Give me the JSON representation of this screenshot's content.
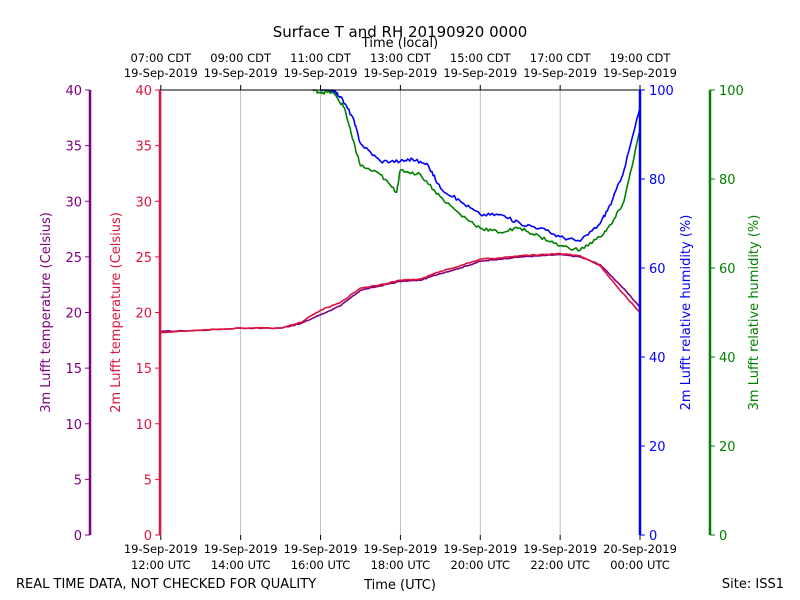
{
  "chart_data": {
    "type": "line",
    "title": "Surface T and RH 20190920 0000",
    "top_xlabel": "Time (local)",
    "xlabel": "Time (UTC)",
    "x_range_hours_utc": [
      11.98,
      24.0
    ],
    "grid": true,
    "bottom_ticks": [
      {
        "hour": 12,
        "line1": "19-Sep-2019",
        "line2": "12:00 UTC"
      },
      {
        "hour": 14,
        "line1": "19-Sep-2019",
        "line2": "14:00 UTC"
      },
      {
        "hour": 16,
        "line1": "19-Sep-2019",
        "line2": "16:00 UTC"
      },
      {
        "hour": 18,
        "line1": "19-Sep-2019",
        "line2": "18:00 UTC"
      },
      {
        "hour": 20,
        "line1": "19-Sep-2019",
        "line2": "20:00 UTC"
      },
      {
        "hour": 22,
        "line1": "19-Sep-2019",
        "line2": "22:00 UTC"
      },
      {
        "hour": 24,
        "line1": "20-Sep-2019",
        "line2": "00:00 UTC"
      }
    ],
    "top_ticks": [
      {
        "hour": 12,
        "line1": "07:00 CDT",
        "line2": "19-Sep-2019"
      },
      {
        "hour": 14,
        "line1": "09:00 CDT",
        "line2": "19-Sep-2019"
      },
      {
        "hour": 16,
        "line1": "11:00 CDT",
        "line2": "19-Sep-2019"
      },
      {
        "hour": 18,
        "line1": "13:00 CDT",
        "line2": "19-Sep-2019"
      },
      {
        "hour": 20,
        "line1": "15:00 CDT",
        "line2": "19-Sep-2019"
      },
      {
        "hour": 22,
        "line1": "17:00 CDT",
        "line2": "19-Sep-2019"
      },
      {
        "hour": 24,
        "line1": "19:00 CDT",
        "line2": "19-Sep-2019"
      }
    ],
    "axes": [
      {
        "id": "t3m",
        "label": "3m Lufft temperature (Celsius)",
        "color": "#800080",
        "ylim": [
          0,
          40
        ],
        "ticks": [
          0,
          5,
          10,
          15,
          20,
          25,
          30,
          35,
          40
        ]
      },
      {
        "id": "t2m",
        "label": "2m Lufft temperature (Celsius)",
        "color": "#dc143c",
        "ylim": [
          0,
          40
        ],
        "ticks": [
          0,
          5,
          10,
          15,
          20,
          25,
          30,
          35,
          40
        ]
      },
      {
        "id": "rh2m",
        "label": "2m Lufft relative humidity (%)",
        "color": "#0000ff",
        "ylim": [
          0,
          100
        ],
        "ticks": [
          0,
          20,
          40,
          60,
          80,
          100
        ]
      },
      {
        "id": "rh3m",
        "label": "3m Lufft relative humidity (%)",
        "color": "#008000",
        "ylim": [
          0,
          100
        ],
        "ticks": [
          0,
          20,
          40,
          60,
          80,
          100
        ]
      }
    ],
    "series": [
      {
        "name": "3m Lufft temperature",
        "axis": "t3m",
        "color": "#800080",
        "x": [
          12.0,
          13.0,
          14.0,
          15.0,
          15.5,
          16.0,
          16.5,
          17.0,
          17.5,
          18.0,
          18.5,
          19.0,
          19.5,
          20.0,
          20.5,
          21.0,
          21.5,
          22.0,
          22.5,
          23.0,
          23.5,
          24.0
        ],
        "y": [
          18.3,
          18.4,
          18.6,
          18.6,
          19.0,
          19.8,
          20.6,
          22.0,
          22.4,
          22.8,
          22.9,
          23.5,
          24.0,
          24.6,
          24.8,
          25.0,
          25.1,
          25.2,
          25.0,
          24.3,
          22.5,
          20.5
        ]
      },
      {
        "name": "2m Lufft temperature",
        "axis": "t2m",
        "color": "#dc143c",
        "x": [
          12.0,
          13.0,
          14.0,
          15.0,
          15.5,
          16.0,
          16.5,
          17.0,
          17.5,
          18.0,
          18.5,
          19.0,
          19.5,
          20.0,
          20.5,
          21.0,
          21.5,
          22.0,
          22.5,
          23.0,
          23.5,
          24.0
        ],
        "y": [
          18.2,
          18.4,
          18.6,
          18.6,
          19.1,
          20.2,
          20.9,
          22.2,
          22.5,
          22.9,
          23.0,
          23.7,
          24.2,
          24.8,
          24.9,
          25.1,
          25.2,
          25.3,
          25.1,
          24.2,
          22.0,
          20.0
        ]
      },
      {
        "name": "2m Lufft relative humidity",
        "axis": "rh2m",
        "color": "#0000ff",
        "x": [
          16.0,
          16.3,
          16.5,
          16.8,
          17.0,
          17.5,
          18.0,
          18.3,
          18.7,
          19.0,
          19.5,
          20.0,
          20.5,
          21.0,
          21.5,
          22.0,
          22.5,
          23.0,
          23.3,
          23.6,
          24.0
        ],
        "y": [
          100,
          100,
          98.5,
          94,
          88,
          84,
          84,
          84.5,
          83,
          78,
          75,
          72,
          72,
          70,
          69,
          67,
          66,
          70,
          75,
          82,
          96
        ]
      },
      {
        "name": "3m Lufft relative humidity",
        "axis": "rh3m",
        "color": "#008000",
        "x": [
          15.8,
          16.0,
          16.3,
          16.6,
          16.8,
          17.0,
          17.5,
          17.9,
          18.0,
          18.5,
          19.0,
          19.5,
          20.0,
          20.5,
          21.0,
          21.5,
          22.0,
          22.5,
          23.0,
          23.3,
          23.6,
          24.0
        ],
        "y": [
          100,
          99.5,
          99.5,
          96,
          89,
          83,
          81,
          77,
          82,
          81,
          76,
          72,
          69,
          68,
          69,
          67,
          65,
          64,
          67,
          70,
          75,
          91
        ]
      }
    ]
  },
  "footer": {
    "disclaimer": "REAL TIME DATA, NOT CHECKED FOR QUALITY",
    "site": "Site: ISS1"
  }
}
